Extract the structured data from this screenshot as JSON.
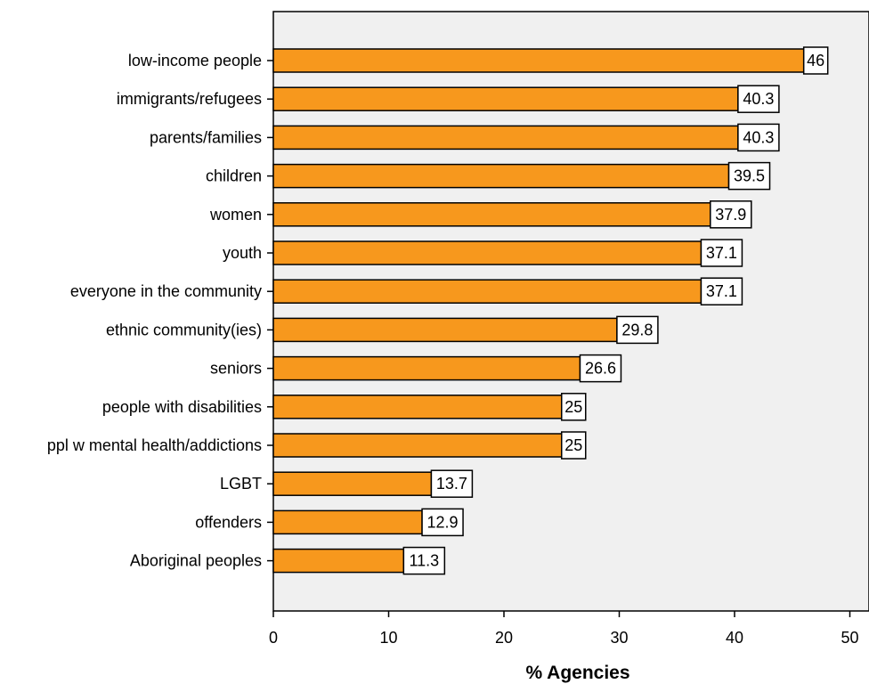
{
  "chart_data": {
    "type": "bar",
    "orientation": "horizontal",
    "categories": [
      "low-income people",
      "immigrants/refugees",
      "parents/families",
      "children",
      "women",
      "youth",
      "everyone in the community",
      "ethnic community(ies)",
      "seniors",
      "people with disabilities",
      "ppl w mental health/addictions",
      "LGBT",
      "offenders",
      "Aboriginal peoples"
    ],
    "values": [
      46,
      40.3,
      40.3,
      39.5,
      37.9,
      37.1,
      37.1,
      29.8,
      26.6,
      25,
      25,
      13.7,
      12.9,
      11.3
    ],
    "data_labels": [
      "46",
      "40.3",
      "40.3",
      "39.5",
      "37.9",
      "37.1",
      "37.1",
      "29.8",
      "26.6",
      "25",
      "25",
      "13.7",
      "12.9",
      "11.3"
    ],
    "title": "",
    "xlabel": "% Agencies",
    "ylabel": "",
    "xlim": [
      0,
      50
    ],
    "xticks": [
      0,
      10,
      20,
      30,
      40,
      50
    ],
    "grid": false,
    "legend": "none",
    "colors": {
      "bar_fill": "#f7981d",
      "bar_stroke": "#000000",
      "plot_background": "#f0f0f0",
      "label_box_fill": "#ffffff"
    }
  }
}
